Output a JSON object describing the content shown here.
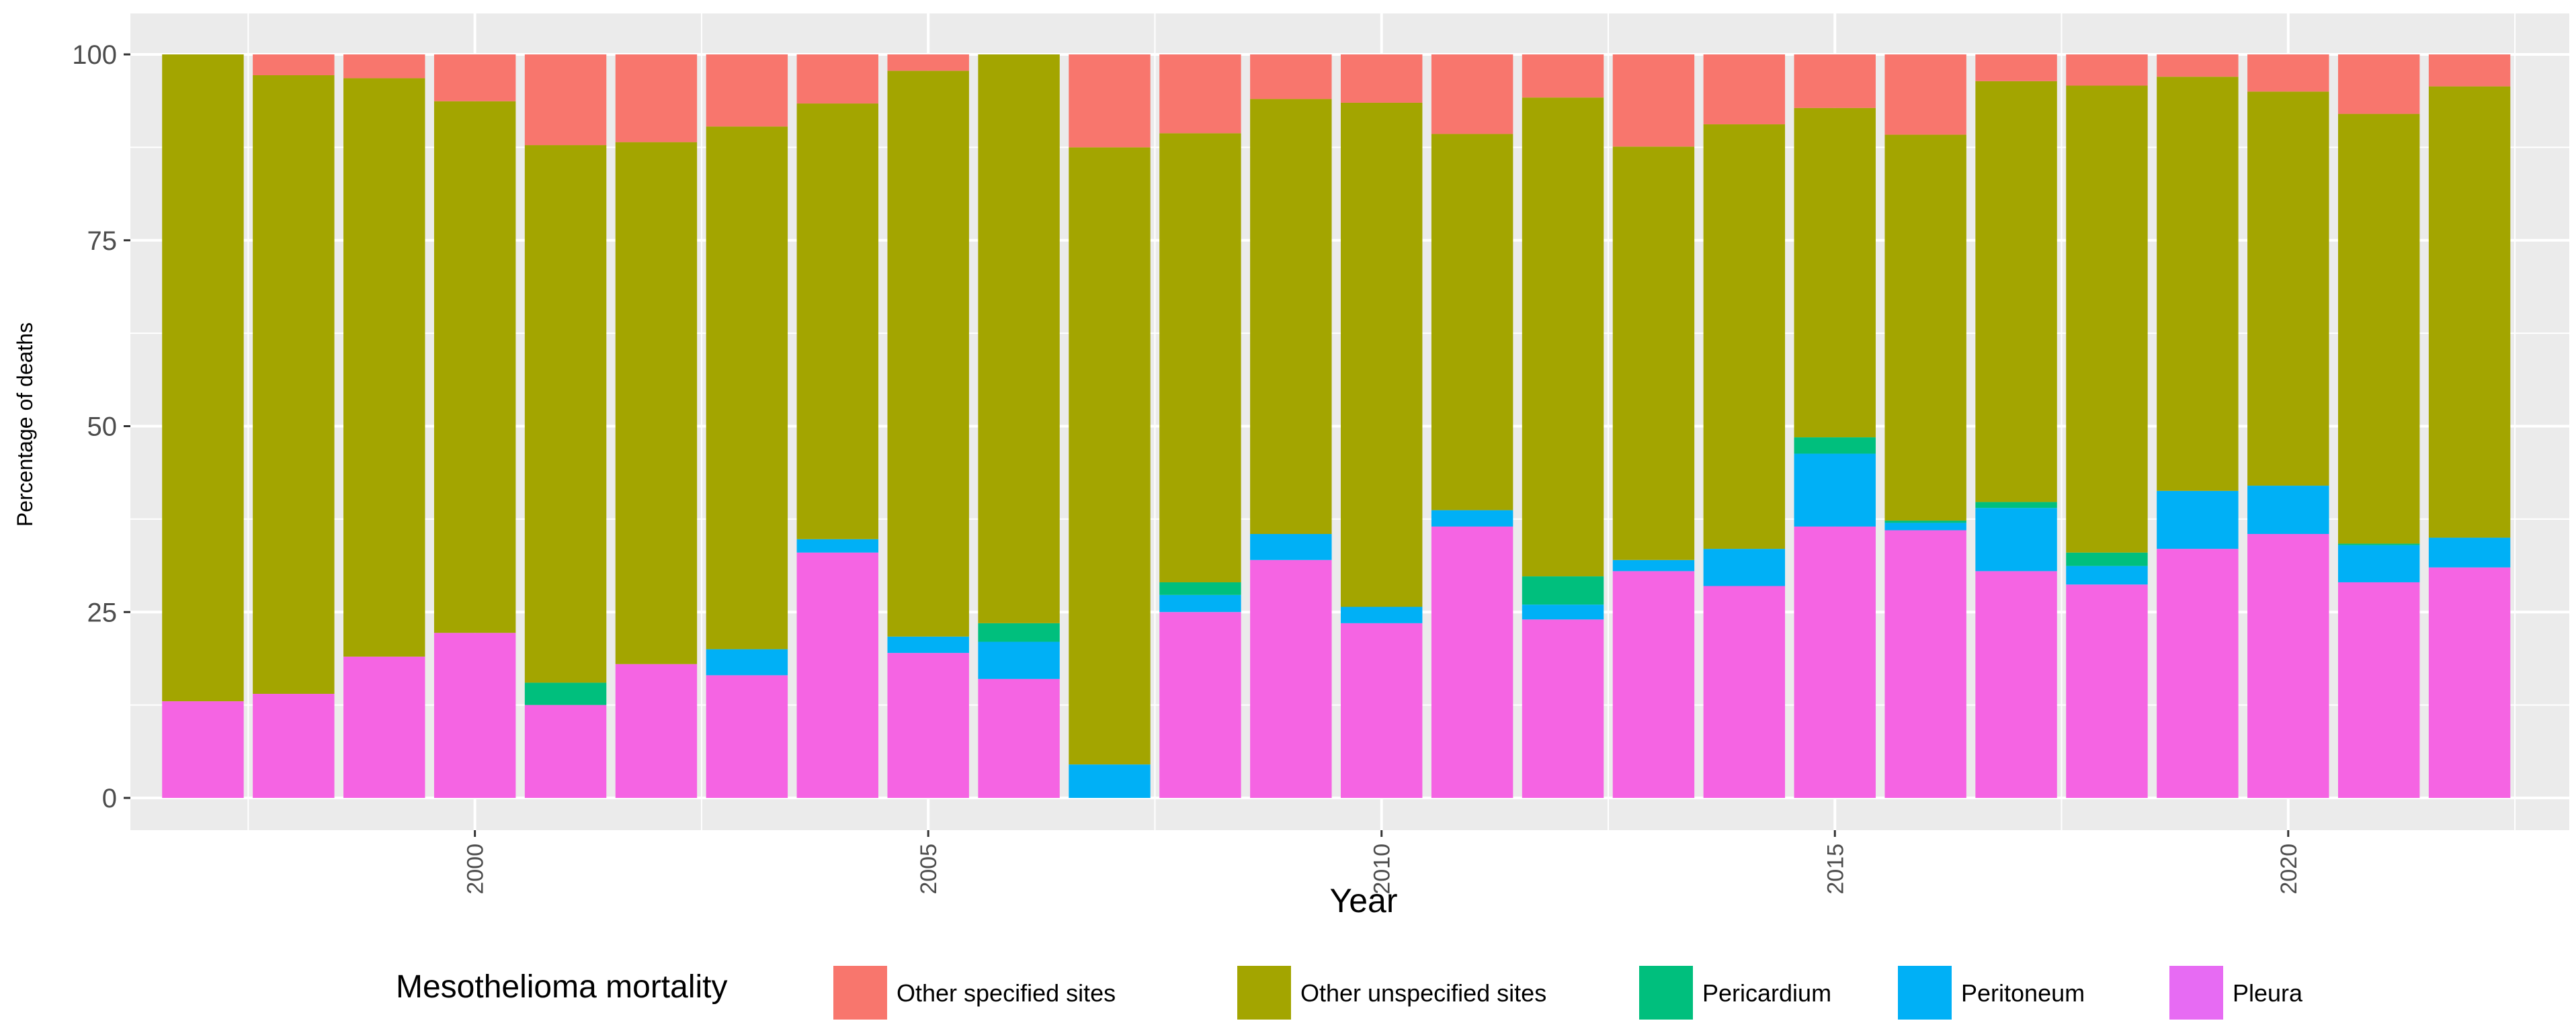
{
  "chart_data": {
    "type": "bar",
    "stacked": true,
    "title": "",
    "xlabel": "Year",
    "ylabel": "Percentage of deaths",
    "ylim": [
      0,
      100
    ],
    "yticks": [
      0,
      25,
      50,
      75,
      100
    ],
    "xlim": [
      1996.2,
      2023.1
    ],
    "xticks": [
      2000,
      2005,
      2010,
      2015,
      2020
    ],
    "grid": true,
    "legend": {
      "title": "Mesothelioma mortality",
      "position": "bottom",
      "entries": [
        {
          "name": "Other specified sites",
          "color": "#F8766D"
        },
        {
          "name": "Other unspecified sites",
          "color": "#A3A500"
        },
        {
          "name": "Pericardium",
          "color": "#00BF7D"
        },
        {
          "name": "Peritoneum",
          "color": "#00B0F6"
        },
        {
          "name": "Pleura",
          "color": "#E76BF3"
        }
      ]
    },
    "categories": [
      1997,
      1998,
      1999,
      2000,
      2001,
      2002,
      2003,
      2004,
      2005,
      2006,
      2007,
      2008,
      2009,
      2010,
      2011,
      2012,
      2013,
      2014,
      2015,
      2016,
      2017,
      2018,
      2019,
      2020,
      2021,
      2022
    ],
    "series": [
      {
        "name": "Pleura",
        "color": "#F564E3",
        "values": [
          13,
          14,
          19,
          22.2,
          12.5,
          18,
          16.5,
          33,
          19.5,
          16,
          0,
          25,
          32,
          23.5,
          36.5,
          24,
          30.5,
          28.5,
          36.5,
          36,
          30.5,
          28.7,
          33.5,
          35.5,
          29,
          31
        ]
      },
      {
        "name": "Peritoneum",
        "color": "#00B0F6",
        "values": [
          0,
          0,
          0,
          0,
          0,
          0,
          3.5,
          1.8,
          2.2,
          5,
          4.5,
          2.3,
          3.5,
          2.2,
          2.2,
          2,
          1.5,
          5,
          9.8,
          1,
          8.5,
          2.5,
          7.8,
          6.5,
          5,
          4
        ]
      },
      {
        "name": "Pericardium",
        "color": "#00BF7D",
        "values": [
          0,
          0,
          0,
          0,
          3,
          0,
          0,
          0,
          0,
          2.5,
          0,
          1.7,
          0,
          0,
          0,
          3.8,
          0,
          0,
          2.2,
          0.3,
          0.8,
          1.8,
          0,
          0,
          0.2,
          0
        ]
      },
      {
        "name": "Other unspecified sites",
        "color": "#A3A500",
        "values": [
          87,
          83.2,
          77.8,
          71.5,
          72.3,
          70.2,
          70.3,
          58.6,
          76.1,
          76.5,
          83,
          60.4,
          58.5,
          67.8,
          50.6,
          64.4,
          55.6,
          57.1,
          44.3,
          51.9,
          56.6,
          62.8,
          55.7,
          53,
          57.8,
          60.7
        ]
      },
      {
        "name": "Other specified sites",
        "color": "#F8766D",
        "values": [
          0,
          2.8,
          3.2,
          6.3,
          12.2,
          11.8,
          9.7,
          6.6,
          2.2,
          0,
          12.5,
          10.6,
          6,
          6.5,
          10.7,
          5.8,
          12.4,
          9.4,
          7.2,
          10.8,
          3.6,
          4.2,
          3,
          5,
          8,
          4.3
        ]
      }
    ]
  }
}
